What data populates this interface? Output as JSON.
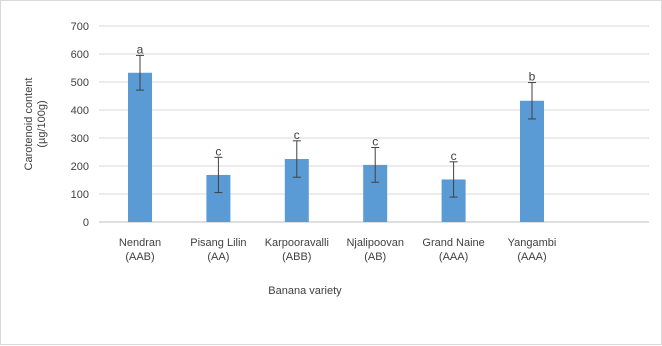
{
  "chart_data": {
    "type": "bar",
    "title": "",
    "xlabel": "Banana variety",
    "ylabel_lines": [
      "Carotenoid content",
      "(µg/100g)"
    ],
    "ylim": [
      0,
      700
    ],
    "yticks": [
      0,
      100,
      200,
      300,
      400,
      500,
      600,
      700
    ],
    "grid": true,
    "legend": "none",
    "bar_color": "#5b9bd5",
    "categories": [
      [
        "Nendran",
        "(AAB)"
      ],
      [
        "Pisang Lilin",
        "(AA)"
      ],
      [
        "Karpooravalli",
        "(ABB)"
      ],
      [
        "Njalipoovan",
        "(AB)"
      ],
      [
        "Grand Naine",
        "(AAA)"
      ],
      [
        "Yangambi",
        "(AAA)"
      ]
    ],
    "values": [
      533,
      168,
      225,
      204,
      152,
      433
    ],
    "error": [
      62,
      63,
      65,
      62,
      63,
      65
    ],
    "significance_labels": [
      "a",
      "c",
      "c",
      "c",
      "c",
      "b"
    ]
  }
}
